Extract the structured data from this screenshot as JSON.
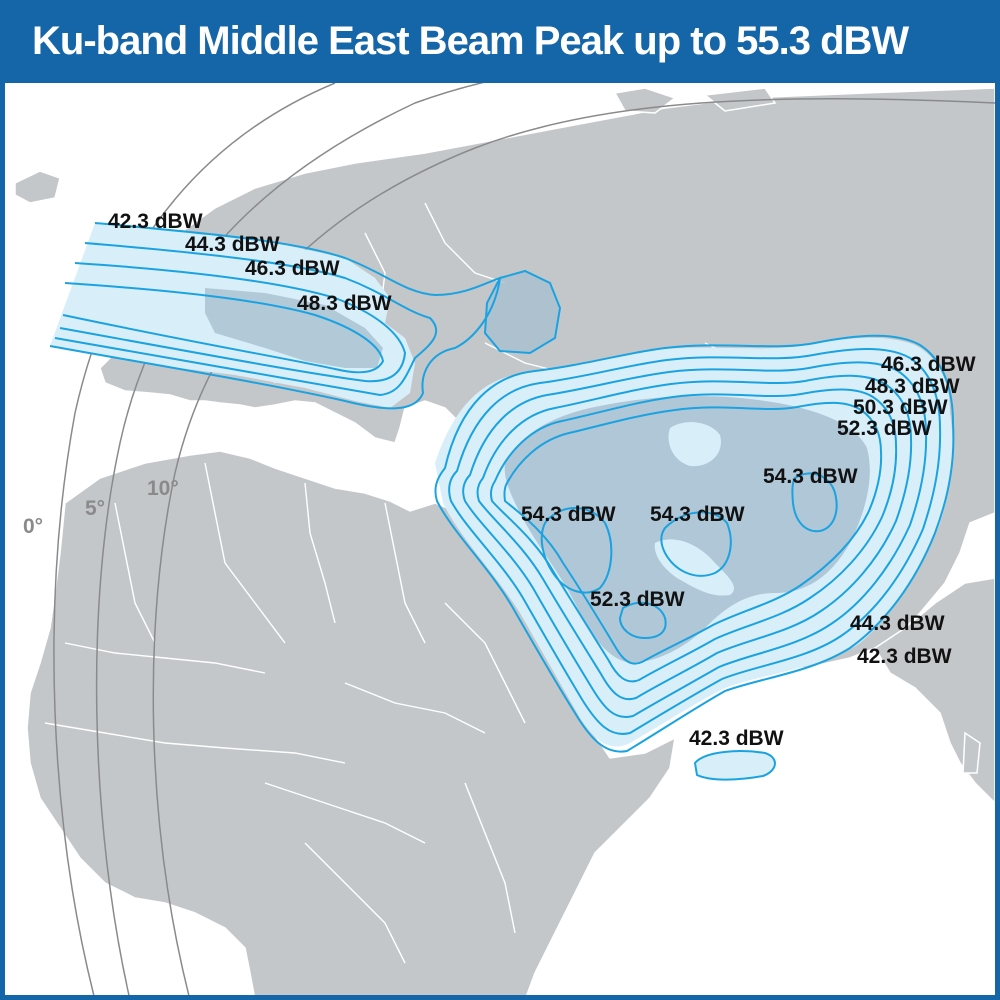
{
  "title": "Ku-band Middle East Beam Peak up to 55.3 dBW",
  "colors": {
    "header": "#1566a8",
    "land": "#c4c7ca",
    "border": "#ffffff",
    "beam_line": "#1aa3e0",
    "beam_fill": "#d8effa",
    "beam_core": "#a9bfd0",
    "arc": "#8a8a8a"
  },
  "elevation_arcs": [
    "0°",
    "5°",
    "10°"
  ],
  "contour_labels": {
    "europe": [
      "42.3 dBW",
      "44.3 dBW",
      "46.3 dBW",
      "48.3 dBW"
    ],
    "east": [
      "46.3 dBW",
      "48.3 dBW",
      "50.3 dBW",
      "52.3 dBW"
    ],
    "core": [
      "54.3 dBW",
      "54.3 dBW",
      "54.3 dBW",
      "52.3 dBW"
    ],
    "south": [
      "44.3 dBW",
      "42.3 dBW",
      "42.3 dBW"
    ]
  }
}
